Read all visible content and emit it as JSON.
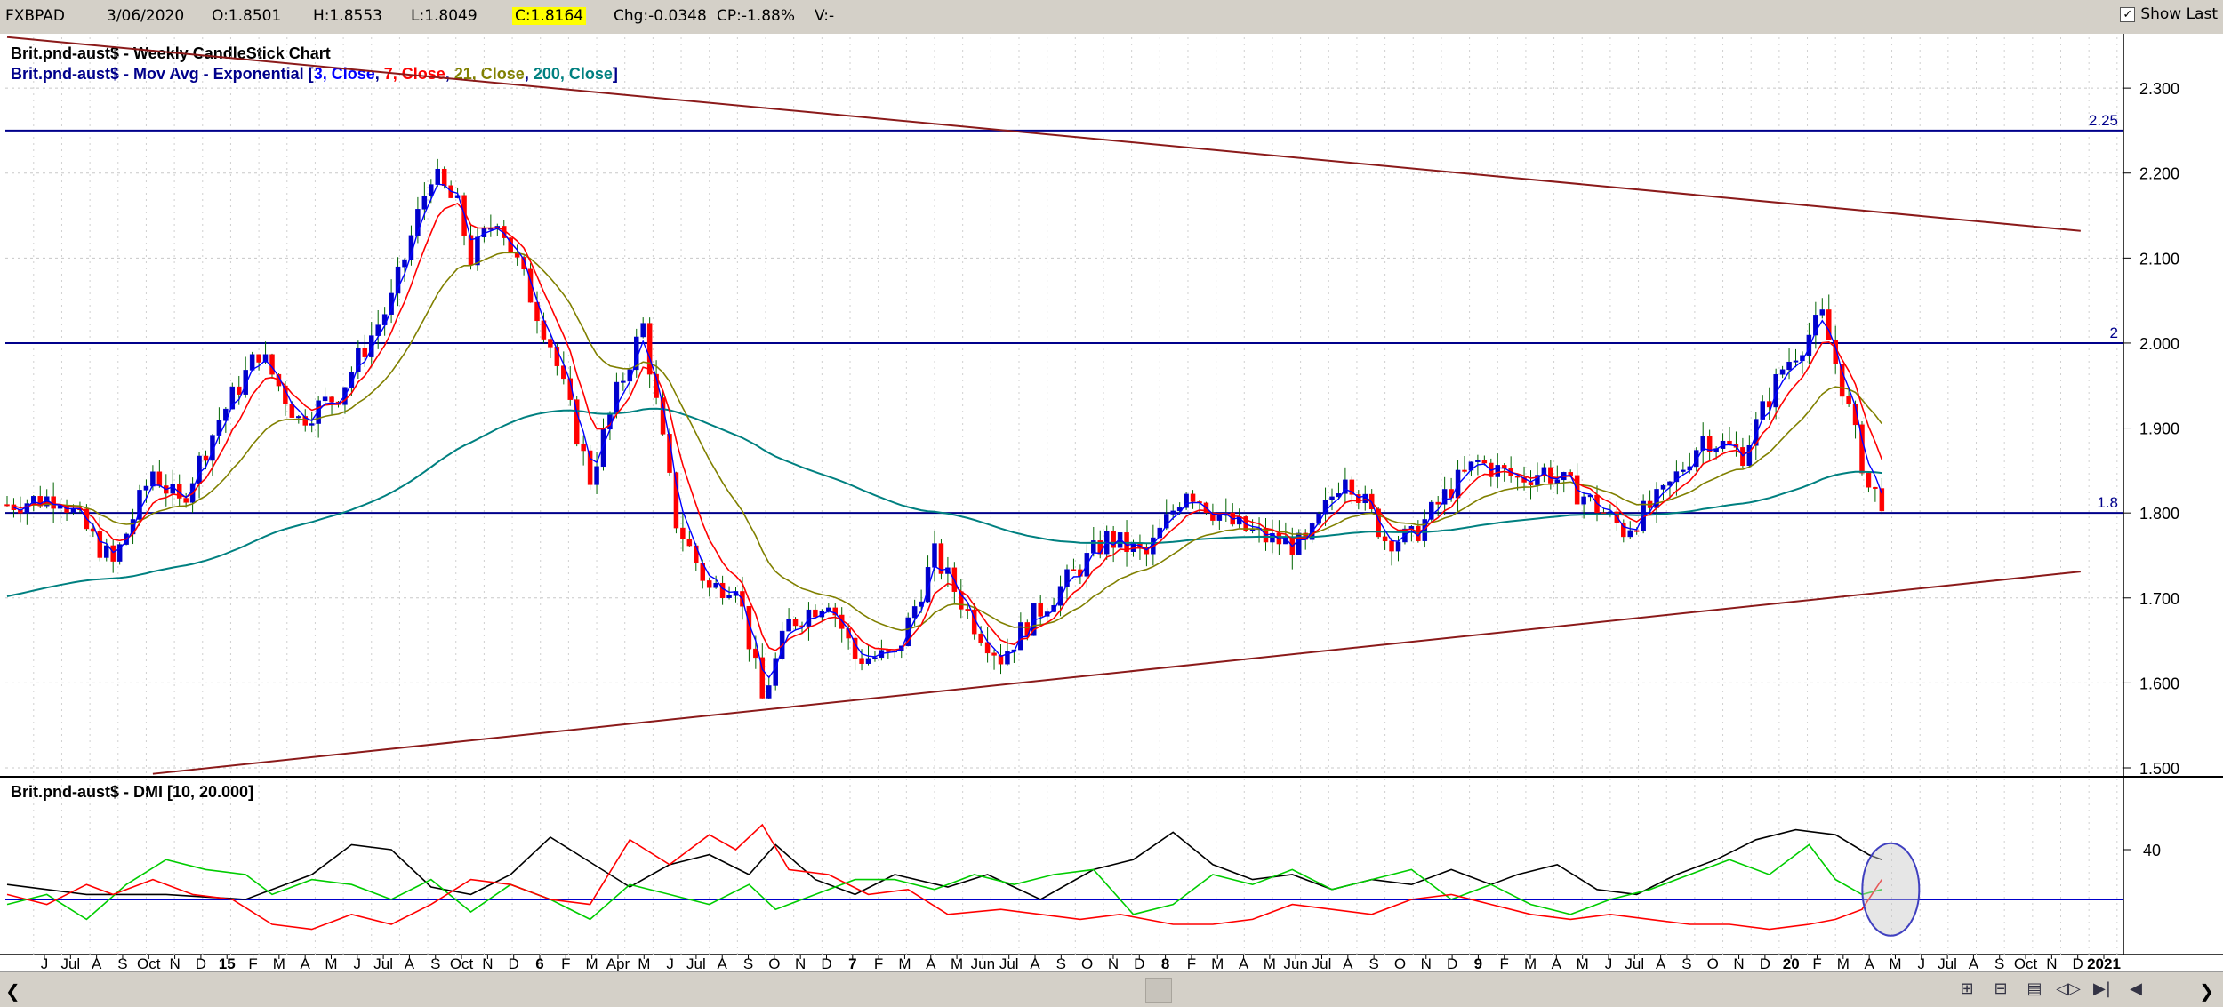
{
  "header": {
    "symbol": "FXBPAD",
    "date": "3/06/2020",
    "open": "O:1.8501",
    "high": "H:1.8553",
    "low": "L:1.8049",
    "close": "C:1.8164",
    "change": "Chg:-0.0348",
    "change_pct": "CP:-1.88%",
    "volume": "V:-",
    "show_last_label": "Show Last",
    "show_last_checked": true
  },
  "colors": {
    "up": "#0000cc",
    "down": "#ff0000",
    "ema3": "#0000ff",
    "ema7": "#ff0000",
    "ema21": "#808000",
    "ema200": "#008080",
    "trendline": "#8b1a1a",
    "hline": "#00008b",
    "plus_di": "#00cc00",
    "minus_di": "#ff0000",
    "adx": "#000000"
  },
  "chart_data": [
    {
      "type": "candlestick",
      "title": "Brit.pnd-aust$ - Weekly CandleStick Chart",
      "subtitle_parts": [
        {
          "text": "Brit.pnd-aust$ - Mov Avg - Exponential [",
          "color": "#00008b"
        },
        {
          "text": "3, Close",
          "color": "#0000ff"
        },
        {
          "text": ", ",
          "color": "#00008b"
        },
        {
          "text": "7, Close",
          "color": "#ff0000"
        },
        {
          "text": ", ",
          "color": "#00008b"
        },
        {
          "text": "21, Close",
          "color": "#808000"
        },
        {
          "text": ", ",
          "color": "#00008b"
        },
        {
          "text": "200, Close",
          "color": "#008080"
        },
        {
          "text": "]",
          "color": "#00008b"
        }
      ],
      "ylim": [
        1.5,
        2.32
      ],
      "y_ticks": [
        "2.300",
        "2.200",
        "2.100",
        "2.000",
        "1.900",
        "1.800",
        "1.700",
        "1.600",
        "1.500"
      ],
      "horizontal_lines": [
        {
          "value": 2.25,
          "label": "2.25"
        },
        {
          "value": 2.0,
          "label": "2"
        },
        {
          "value": 1.8,
          "label": "1.8"
        }
      ],
      "trendlines": [
        {
          "from_week": 0,
          "to_week": 313,
          "from_value": 2.36,
          "to_value": 2.132
        },
        {
          "from_week": 22,
          "to_week": 313,
          "from_value": 1.493,
          "to_value": 1.731
        }
      ],
      "price_path": [
        [
          0,
          1.81
        ],
        [
          8,
          1.82
        ],
        [
          16,
          1.74
        ],
        [
          22,
          1.85
        ],
        [
          26,
          1.81
        ],
        [
          32,
          1.91
        ],
        [
          38,
          1.99
        ],
        [
          44,
          1.91
        ],
        [
          50,
          1.94
        ],
        [
          58,
          2.05
        ],
        [
          64,
          2.2
        ],
        [
          68,
          2.16
        ],
        [
          70,
          2.1
        ],
        [
          74,
          2.15
        ],
        [
          82,
          2.0
        ],
        [
          88,
          1.84
        ],
        [
          92,
          1.94
        ],
        [
          96,
          2.02
        ],
        [
          101,
          1.79
        ],
        [
          106,
          1.71
        ],
        [
          110,
          1.72
        ],
        [
          114,
          1.58
        ],
        [
          118,
          1.67
        ],
        [
          124,
          1.7
        ],
        [
          128,
          1.63
        ],
        [
          134,
          1.63
        ],
        [
          140,
          1.75
        ],
        [
          146,
          1.67
        ],
        [
          150,
          1.63
        ],
        [
          154,
          1.67
        ],
        [
          160,
          1.72
        ],
        [
          166,
          1.77
        ],
        [
          172,
          1.75
        ],
        [
          178,
          1.83
        ],
        [
          184,
          1.79
        ],
        [
          190,
          1.77
        ],
        [
          196,
          1.76
        ],
        [
          202,
          1.85
        ],
        [
          208,
          1.77
        ],
        [
          212,
          1.77
        ],
        [
          218,
          1.83
        ],
        [
          222,
          1.86
        ],
        [
          228,
          1.84
        ],
        [
          232,
          1.85
        ],
        [
          238,
          1.82
        ],
        [
          244,
          1.78
        ],
        [
          250,
          1.82
        ],
        [
          256,
          1.89
        ],
        [
          262,
          1.87
        ],
        [
          268,
          1.97
        ],
        [
          274,
          2.03
        ],
        [
          277,
          1.95
        ],
        [
          281,
          1.83
        ],
        [
          283,
          1.816
        ]
      ],
      "x_axis_labels": [
        "J",
        "Jul",
        "A",
        "S",
        "Oct",
        "N",
        "D",
        "15",
        "F",
        "M",
        "A",
        "M",
        "J",
        "Jul",
        "A",
        "S",
        "Oct",
        "N",
        "D",
        "6",
        "F",
        "M",
        "Apr",
        "M",
        "J",
        "Jul",
        "A",
        "S",
        "O",
        "N",
        "D",
        "7",
        "F",
        "M",
        "A",
        "M",
        "Jun",
        "Jul",
        "A",
        "S",
        "O",
        "N",
        "D",
        "8",
        "F",
        "M",
        "A",
        "M",
        "Jun",
        "Jul",
        "A",
        "S",
        "O",
        "N",
        "D",
        "9",
        "F",
        "M",
        "A",
        "M",
        "J",
        "Jul",
        "A",
        "S",
        "O",
        "N",
        "D",
        "20",
        "F",
        "M",
        "A",
        "M",
        "J",
        "Jul",
        "A",
        "S",
        "Oct",
        "N",
        "D",
        "2021"
      ],
      "bold_x_labels": [
        "15",
        "6",
        "7",
        "8",
        "9",
        "20",
        "2021"
      ]
    },
    {
      "type": "line",
      "title": "Brit.pnd-aust$ - DMI [10, 20.000]",
      "y_ticks": [
        "40"
      ],
      "reference_line": 20,
      "ylim": [
        0,
        60
      ],
      "series": [
        {
          "color": "#000000",
          "points": [
            [
              0,
              26
            ],
            [
              12,
              22
            ],
            [
              24,
              22
            ],
            [
              36,
              20
            ],
            [
              46,
              30
            ],
            [
              52,
              42
            ],
            [
              58,
              40
            ],
            [
              64,
              25
            ],
            [
              70,
              22
            ],
            [
              76,
              30
            ],
            [
              82,
              45
            ],
            [
              88,
              35
            ],
            [
              94,
              25
            ],
            [
              100,
              34
            ],
            [
              106,
              38
            ],
            [
              112,
              30
            ],
            [
              116,
              42
            ],
            [
              122,
              28
            ],
            [
              128,
              22
            ],
            [
              134,
              30
            ],
            [
              142,
              25
            ],
            [
              148,
              30
            ],
            [
              156,
              20
            ],
            [
              164,
              32
            ],
            [
              170,
              36
            ],
            [
              176,
              47
            ],
            [
              182,
              34
            ],
            [
              188,
              28
            ],
            [
              194,
              30
            ],
            [
              200,
              24
            ],
            [
              206,
              28
            ],
            [
              212,
              26
            ],
            [
              218,
              32
            ],
            [
              224,
              26
            ],
            [
              228,
              30
            ],
            [
              234,
              34
            ],
            [
              240,
              24
            ],
            [
              246,
              22
            ],
            [
              252,
              30
            ],
            [
              258,
              36
            ],
            [
              264,
              44
            ],
            [
              270,
              48
            ],
            [
              276,
              46
            ],
            [
              281,
              38
            ],
            [
              283,
              36
            ]
          ]
        },
        {
          "color": "#00cc00",
          "points": [
            [
              0,
              18
            ],
            [
              6,
              22
            ],
            [
              12,
              12
            ],
            [
              18,
              26
            ],
            [
              24,
              36
            ],
            [
              30,
              32
            ],
            [
              36,
              30
            ],
            [
              40,
              22
            ],
            [
              46,
              28
            ],
            [
              52,
              26
            ],
            [
              58,
              20
            ],
            [
              64,
              28
            ],
            [
              70,
              15
            ],
            [
              76,
              26
            ],
            [
              82,
              20
            ],
            [
              88,
              12
            ],
            [
              94,
              26
            ],
            [
              100,
              22
            ],
            [
              106,
              18
            ],
            [
              112,
              26
            ],
            [
              116,
              16
            ],
            [
              122,
              22
            ],
            [
              128,
              28
            ],
            [
              134,
              28
            ],
            [
              140,
              24
            ],
            [
              146,
              30
            ],
            [
              152,
              26
            ],
            [
              158,
              30
            ],
            [
              164,
              32
            ],
            [
              170,
              14
            ],
            [
              176,
              18
            ],
            [
              182,
              30
            ],
            [
              188,
              26
            ],
            [
              194,
              32
            ],
            [
              200,
              24
            ],
            [
              206,
              28
            ],
            [
              212,
              32
            ],
            [
              218,
              20
            ],
            [
              224,
              26
            ],
            [
              230,
              18
            ],
            [
              236,
              14
            ],
            [
              242,
              20
            ],
            [
              248,
              24
            ],
            [
              254,
              30
            ],
            [
              260,
              36
            ],
            [
              266,
              30
            ],
            [
              272,
              42
            ],
            [
              276,
              28
            ],
            [
              280,
              22
            ],
            [
              283,
              24
            ]
          ]
        },
        {
          "color": "#ff0000",
          "points": [
            [
              0,
              22
            ],
            [
              6,
              18
            ],
            [
              12,
              26
            ],
            [
              16,
              22
            ],
            [
              22,
              28
            ],
            [
              28,
              22
            ],
            [
              34,
              20
            ],
            [
              40,
              10
            ],
            [
              46,
              8
            ],
            [
              52,
              14
            ],
            [
              58,
              10
            ],
            [
              64,
              18
            ],
            [
              70,
              28
            ],
            [
              76,
              26
            ],
            [
              82,
              20
            ],
            [
              88,
              18
            ],
            [
              94,
              44
            ],
            [
              100,
              34
            ],
            [
              106,
              46
            ],
            [
              110,
              40
            ],
            [
              114,
              50
            ],
            [
              118,
              32
            ],
            [
              124,
              30
            ],
            [
              130,
              22
            ],
            [
              136,
              24
            ],
            [
              142,
              14
            ],
            [
              150,
              16
            ],
            [
              156,
              14
            ],
            [
              162,
              12
            ],
            [
              168,
              14
            ],
            [
              176,
              10
            ],
            [
              182,
              10
            ],
            [
              188,
              12
            ],
            [
              194,
              18
            ],
            [
              200,
              16
            ],
            [
              206,
              14
            ],
            [
              212,
              20
            ],
            [
              218,
              22
            ],
            [
              224,
              18
            ],
            [
              230,
              14
            ],
            [
              236,
              12
            ],
            [
              242,
              14
            ],
            [
              248,
              12
            ],
            [
              254,
              10
            ],
            [
              260,
              10
            ],
            [
              266,
              8
            ],
            [
              272,
              10
            ],
            [
              276,
              12
            ],
            [
              280,
              16
            ],
            [
              283,
              28
            ]
          ]
        }
      ]
    }
  ]
}
